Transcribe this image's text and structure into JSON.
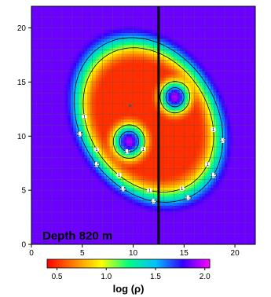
{
  "chart_data": {
    "type": "heatmap",
    "title": "",
    "annotation": "Depth 820 m",
    "xlim": [
      0,
      22
    ],
    "ylim": [
      0,
      22
    ],
    "x_ticks": [
      0,
      5,
      10,
      15,
      20
    ],
    "y_ticks": [
      0,
      5,
      10,
      15,
      20
    ],
    "grid": true,
    "grid_step": 1,
    "grid_color": "#555555",
    "colormap": [
      "#ff00ff",
      "#3300ff",
      "#00c0ff",
      "#00ff80",
      "#ffff00",
      "#ff8000",
      "#ff0000"
    ],
    "colorbar": {
      "label": "log (ρ)",
      "range": [
        0.4,
        2.05
      ],
      "ticks": [
        0.5,
        1.0,
        1.5,
        2.0
      ],
      "tick_labels": [
        "0.5",
        "1.0",
        "1.5",
        "2.0"
      ]
    },
    "field": {
      "background_value": 1.85,
      "ellipse": {
        "center": [
          11.5,
          11.5
        ],
        "rx": 7.6,
        "ry": 9.6,
        "rotation_deg": 40,
        "value": 0.5,
        "edge_width": 4.0
      },
      "anomalies": [
        {
          "center": [
            9.6,
            9.5
          ],
          "radius": 1.6,
          "value": 1.95
        },
        {
          "center": [
            14.1,
            13.6
          ],
          "radius": 1.5,
          "value": 1.95
        }
      ]
    },
    "contours": [
      {
        "level": 1,
        "label": "1"
      },
      {
        "level": 1.5,
        "label": "1.5"
      }
    ],
    "vertical_line_x": 12.5,
    "marker": [
      9.7,
      12.8
    ]
  }
}
